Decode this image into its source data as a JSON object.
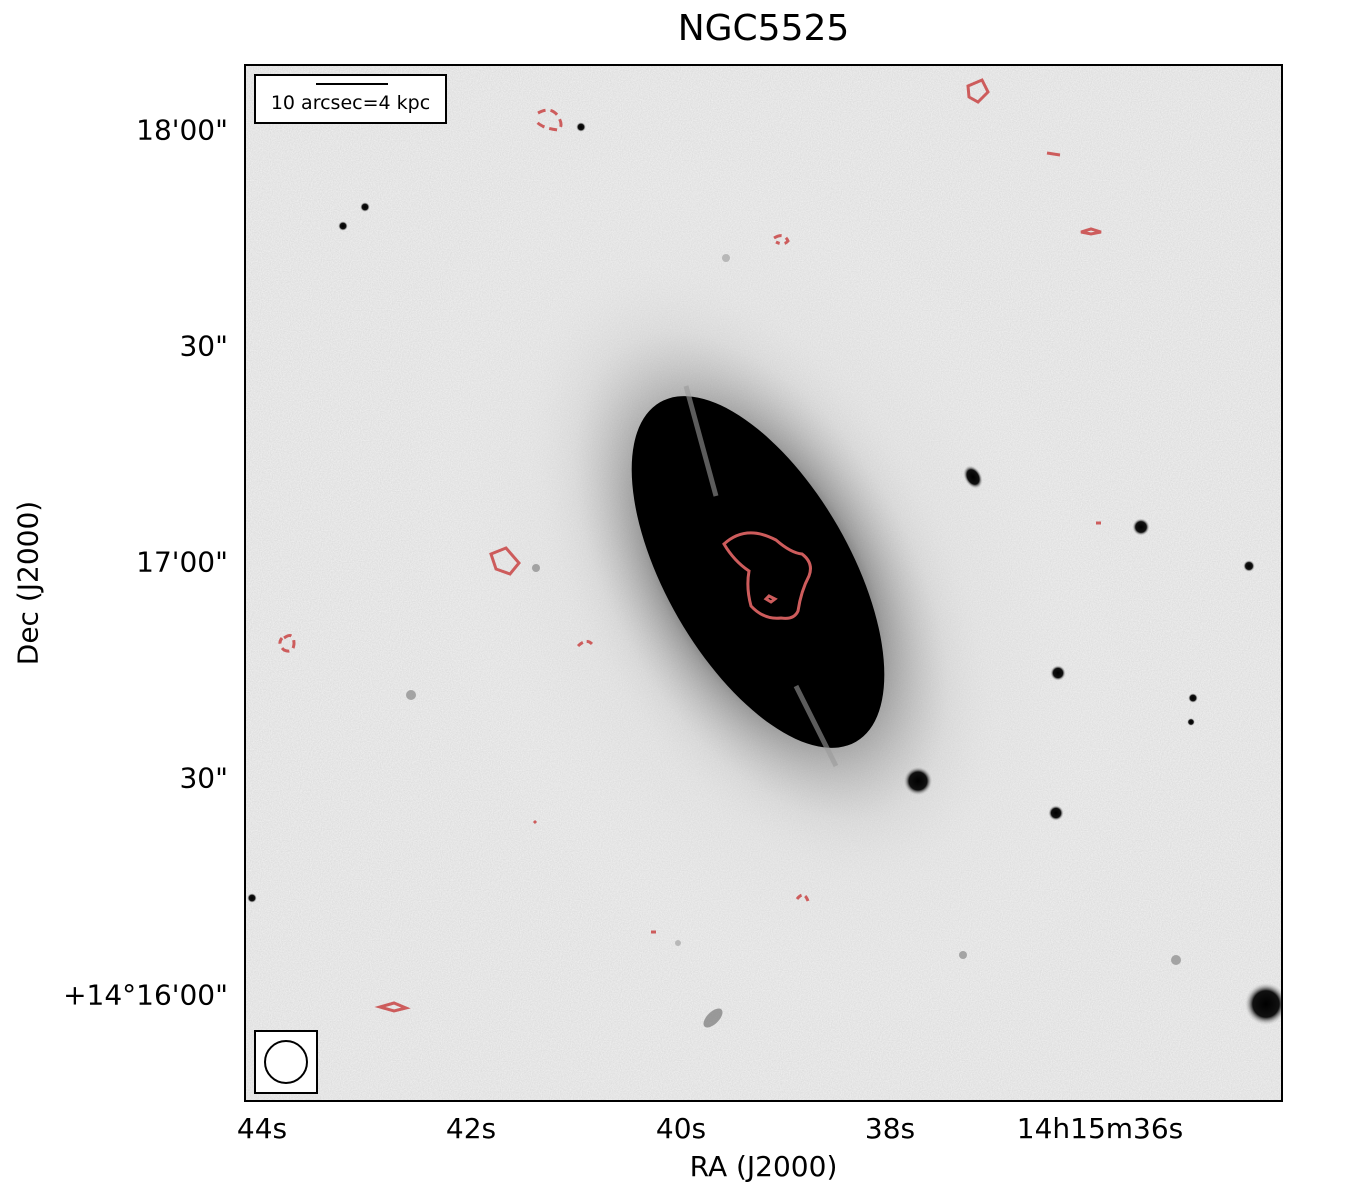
{
  "title": "NGC5525",
  "axes": {
    "xlabel": "RA (J2000)",
    "ylabel": "Dec (J2000)",
    "x_ticks": [
      "44s",
      "42s",
      "40s",
      "38s",
      "14h15m36s"
    ],
    "y_ticks": [
      "18'00\"",
      "30\"",
      "17'00\"",
      "30\"",
      "+14°16'00\""
    ]
  },
  "scale_bar": {
    "label": "10 arcsec=4 kpc"
  },
  "beam_icon": "beam-ellipse-icon",
  "colors": {
    "contour": "#cd5c5c",
    "background": "#f4f4f4",
    "galaxy_core": "#000000"
  },
  "image": {
    "colormap": "greyscale inverted",
    "overlay": "red contours (solid and dashed)"
  }
}
